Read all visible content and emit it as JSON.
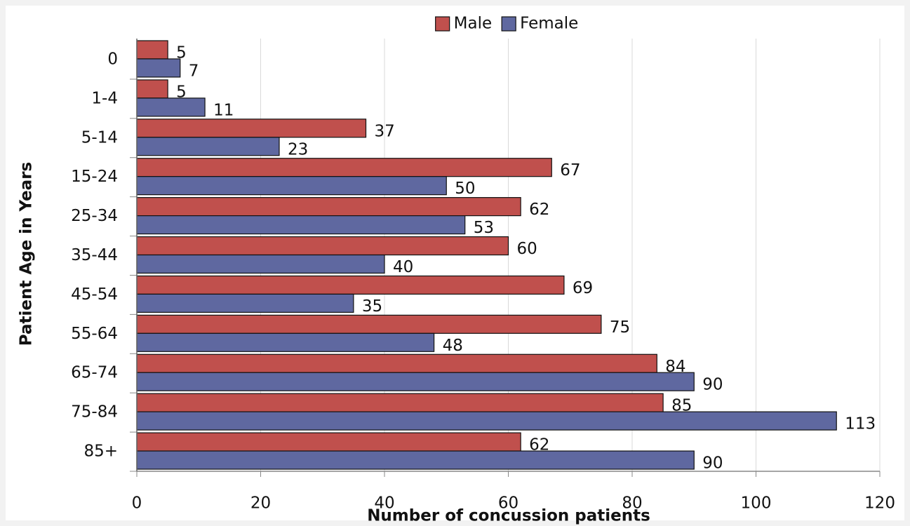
{
  "chart_data": {
    "type": "hbar",
    "xlabel": "Number of concussion patients",
    "ylabel": "Patient Age in Years",
    "categories": [
      "0",
      "1-4",
      "5-14",
      "15-24",
      "25-34",
      "35-44",
      "45-54",
      "55-64",
      "65-74",
      "75-84",
      "85+"
    ],
    "series": [
      {
        "name": "Male",
        "color": "#c0504d",
        "values": [
          5,
          5,
          37,
          67,
          62,
          60,
          69,
          75,
          84,
          85,
          62
        ]
      },
      {
        "name": "Female",
        "color": "#5f68a0",
        "values": [
          7,
          11,
          23,
          50,
          53,
          40,
          35,
          48,
          90,
          113,
          90
        ]
      }
    ],
    "xlim": [
      0,
      120
    ],
    "xticks": [
      0,
      20,
      40,
      60,
      80,
      100,
      120
    ],
    "grid": true,
    "legend": "top"
  }
}
